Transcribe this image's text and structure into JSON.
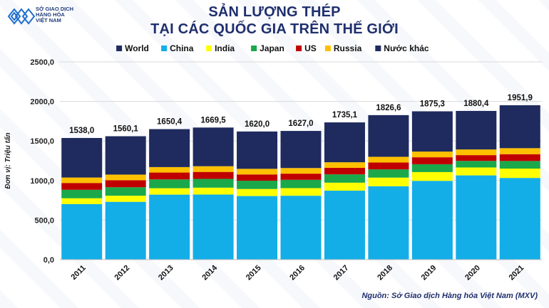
{
  "header": {
    "logo_line1": "SỞ GIAO DỊCH",
    "logo_line2": "HÀNG HÓA",
    "logo_line3": "VIỆT NAM",
    "title_line1": "SẢN LƯỢNG THÉP",
    "title_line2": "TẠI CÁC QUỐC GIA TRÊN THẾ GIỚI"
  },
  "source": "Nguồn: Sở Giao dịch Hàng hóa Việt Nam (MXV)",
  "colors": {
    "World": "#1f2b5e",
    "China": "#13aee8",
    "India": "#ffff00",
    "Japan": "#1aa84a",
    "US": "#c00000",
    "Russia": "#ffc000",
    "Nước khác": "#1f2b5e",
    "title": "#1f2f6e",
    "grid": "#d9d9d9"
  },
  "chart_data": {
    "type": "bar",
    "stacked": true,
    "title": "SẢN LƯỢNG THÉP TẠI CÁC QUỐC GIA TRÊN THẾ GIỚI",
    "ylabel": "Đơn vị: Triệu tấn",
    "xlabel": "",
    "ylim": [
      0,
      2500
    ],
    "yticks": [
      0,
      500,
      1000,
      1500,
      2000,
      2500
    ],
    "ytick_labels": [
      "0,0",
      "500,0",
      "1000,0",
      "1500,0",
      "2000,0",
      "2500,0"
    ],
    "legend": [
      "World",
      "China",
      "India",
      "Japan",
      "US",
      "Russia",
      "Nước khác"
    ],
    "legend_position": "top",
    "categories": [
      "2011",
      "2012",
      "2013",
      "2014",
      "2015",
      "2016",
      "2017",
      "2018",
      "2019",
      "2020",
      "2021"
    ],
    "series": [
      {
        "name": "China",
        "values": [
          702,
          731,
          822,
          823,
          804,
          808,
          872,
          928,
          996,
          1065,
          1033
        ]
      },
      {
        "name": "India",
        "values": [
          74,
          77,
          81,
          87,
          89,
          96,
          101,
          109,
          111,
          100,
          118
        ]
      },
      {
        "name": "Japan",
        "values": [
          107,
          107,
          111,
          111,
          105,
          105,
          105,
          104,
          99,
          83,
          96
        ]
      },
      {
        "name": "US",
        "values": [
          86,
          89,
          87,
          88,
          79,
          78,
          82,
          87,
          88,
          73,
          86
        ]
      },
      {
        "name": "Russia",
        "values": [
          69,
          71,
          69,
          72,
          71,
          71,
          71,
          72,
          72,
          72,
          76
        ]
      },
      {
        "name": "Nước khác",
        "values": [
          500,
          485,
          480,
          489,
          472,
          469,
          504,
          527,
          509,
          487,
          543
        ]
      }
    ],
    "totals": [
      1538.0,
      1560.1,
      1650.4,
      1669.5,
      1620.0,
      1627.0,
      1735.1,
      1826.6,
      1875.3,
      1880.4,
      1951.9
    ],
    "total_labels": [
      "1538,0",
      "1560,1",
      "1650,4",
      "1669,5",
      "1620,0",
      "1627,0",
      "1735,1",
      "1826,6",
      "1875,3",
      "1880,4",
      "1951,9"
    ]
  }
}
